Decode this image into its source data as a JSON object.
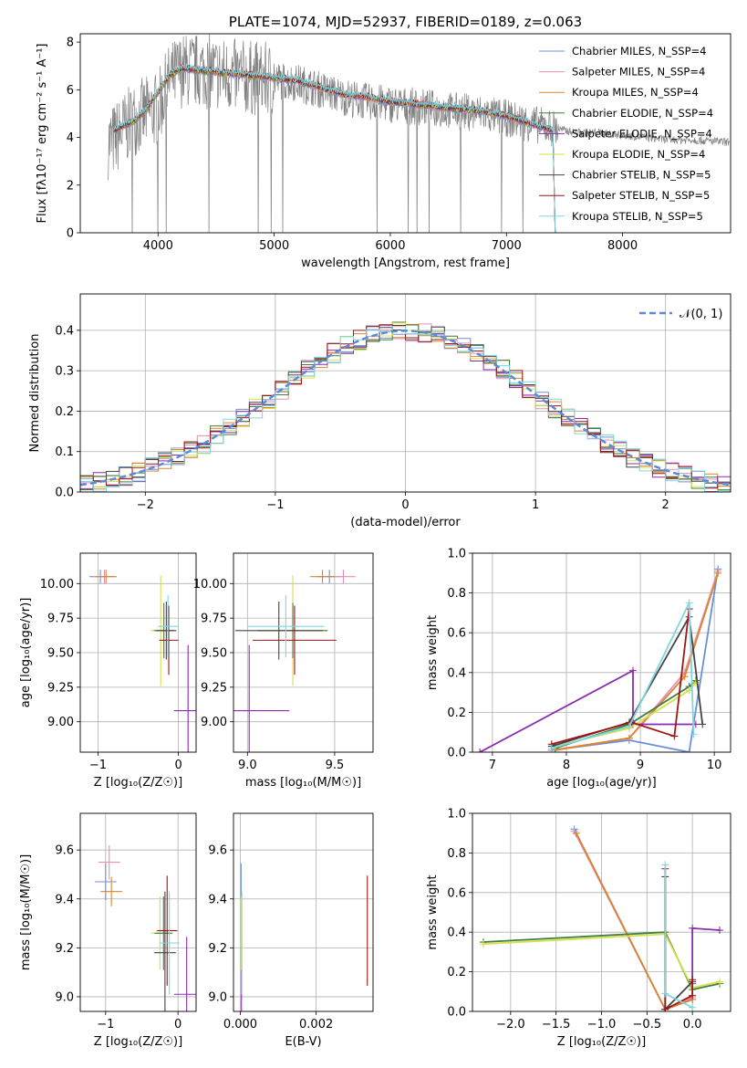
{
  "colors": [
    "#6b8fd6",
    "#e58fb8",
    "#d9862e",
    "#3f7f3f",
    "#8a2bb0",
    "#d6e04a",
    "#444444",
    "#a01515",
    "#7fd6e0"
  ],
  "chart_data": [
    {
      "id": "spectrum",
      "type": "line",
      "title": "PLATE=1074, MJD=52937, FIBERID=0189, z=0.063",
      "xlabel": "wavelength [Angstrom, rest frame]",
      "ylabel": "Flux [fλ10⁻¹⁷ erg cm⁻² s⁻¹ A⁻¹]",
      "xlim": [
        3330,
        8930
      ],
      "ylim": [
        0,
        8.35
      ],
      "xticks": [
        4000,
        5000,
        6000,
        7000,
        8000
      ],
      "yticks": [
        0,
        2,
        4,
        6,
        8
      ],
      "grid": false,
      "legend_position": "top-right",
      "data_flux": {
        "x": [
          3600,
          3800,
          4000,
          4100,
          4200,
          4400,
          4600,
          4800,
          5000,
          5200,
          5400,
          5600,
          5800,
          6000,
          6200,
          6400,
          6600,
          6800,
          7000,
          7200,
          7400,
          7600,
          7800,
          8000,
          8200,
          8400,
          8600,
          8900
        ],
        "y": [
          3.8,
          4.8,
          5.2,
          6.4,
          6.8,
          6.8,
          6.6,
          6.5,
          6.4,
          6.3,
          6.0,
          5.7,
          5.5,
          5.4,
          5.3,
          5.2,
          5.1,
          5.0,
          4.8,
          4.6,
          4.4,
          4.2,
          4.2,
          4.1,
          4.0,
          3.9,
          3.9,
          3.8
        ]
      },
      "model": {
        "x": [
          3620,
          3700,
          3800,
          3900,
          4000,
          4100,
          4200,
          4400,
          4600,
          4800,
          5000,
          5200,
          5400,
          5600,
          5800,
          6000,
          6200,
          6400,
          6600,
          6800,
          7000,
          7200,
          7400
        ],
        "y": [
          4.3,
          4.5,
          4.7,
          5.2,
          5.9,
          6.6,
          6.9,
          6.8,
          6.7,
          6.6,
          6.5,
          6.4,
          6.1,
          5.8,
          5.7,
          5.5,
          5.4,
          5.3,
          5.2,
          5.1,
          4.9,
          4.6,
          4.3
        ]
      },
      "series": [
        {
          "name": "Chabrier MILES, N_SSP=4"
        },
        {
          "name": "Salpeter MILES, N_SSP=4"
        },
        {
          "name": "Kroupa MILES, N_SSP=4"
        },
        {
          "name": "Chabrier ELODIE, N_SSP=4"
        },
        {
          "name": "Salpeter ELODIE, N_SSP=4"
        },
        {
          "name": "Kroupa ELODIE, N_SSP=4"
        },
        {
          "name": "Chabrier STELIB, N_SSP=5"
        },
        {
          "name": "Salpeter STELIB, N_SSP=5"
        },
        {
          "name": "Kroupa STELIB, N_SSP=5"
        }
      ]
    },
    {
      "id": "residuals",
      "type": "line",
      "xlabel": "(data-model)/error",
      "ylabel": "Normed distribution",
      "xlim": [
        -2.5,
        2.5
      ],
      "ylim": [
        0,
        0.49
      ],
      "xticks": [
        -2,
        -1,
        0,
        1,
        2
      ],
      "yticks": [
        0.0,
        0.1,
        0.2,
        0.3,
        0.4
      ],
      "grid": true,
      "legend_position": "top-right",
      "reference": {
        "name": "𝒩(0, 1)",
        "mean": 0,
        "sigma": 1
      },
      "bin_width": 0.1
    },
    {
      "id": "age-Z",
      "type": "scatter",
      "xlabel": "Z [log₁₀(Z/Z☉)]",
      "ylabel": "age  [log₁₀(age/yr)]",
      "xlim": [
        -1.22,
        0.22
      ],
      "ylim": [
        8.78,
        10.22
      ],
      "xticks": [
        -1,
        0
      ],
      "yticks": [
        9.0,
        9.25,
        9.5,
        9.75,
        10.0
      ],
      "grid": true,
      "points": [
        {
          "series": 0,
          "x": -0.97,
          "y": 10.05,
          "ex": 0.27,
          "ey": 0.1
        },
        {
          "series": 1,
          "x": -0.92,
          "y": 10.05,
          "ex": 0.3,
          "ey": 0.1
        },
        {
          "series": 2,
          "x": -0.9,
          "y": 10.05,
          "ex": 0.26,
          "ey": 0.1
        },
        {
          "series": 4,
          "x": 0.12,
          "y": 9.08,
          "ex": 0.35,
          "ey": 0.95
        },
        {
          "series": 5,
          "x": -0.22,
          "y": 9.66,
          "ex": 0.25,
          "ey": 0.8
        },
        {
          "series": 3,
          "x": -0.18,
          "y": 9.66,
          "ex": 0.25,
          "ey": 0.4
        },
        {
          "series": 6,
          "x": -0.15,
          "y": 9.66,
          "ex": 0.25,
          "ey": 0.42
        },
        {
          "series": 7,
          "x": -0.12,
          "y": 9.59,
          "ex": 0.24,
          "ey": 0.5
        },
        {
          "series": 8,
          "x": -0.13,
          "y": 9.69,
          "ex": 0.25,
          "ey": 0.45
        }
      ]
    },
    {
      "id": "age-mass",
      "type": "scatter",
      "xlabel": "mass [log₁₀(M/M☉)]",
      "ylabel": "",
      "xlim": [
        8.92,
        9.72
      ],
      "ylim": [
        8.78,
        10.22
      ],
      "xticks": [
        9.0,
        9.5
      ],
      "yticks": [
        9.0,
        9.25,
        9.5,
        9.75,
        10.0
      ],
      "grid": true,
      "points": [
        {
          "series": 0,
          "x": 9.47,
          "y": 10.05,
          "ex": 0.14,
          "ey": 0.1
        },
        {
          "series": 1,
          "x": 9.55,
          "y": 10.05,
          "ex": 0.14,
          "ey": 0.1
        },
        {
          "series": 2,
          "x": 9.43,
          "y": 10.05,
          "ex": 0.14,
          "ey": 0.1
        },
        {
          "series": 4,
          "x": 9.01,
          "y": 9.08,
          "ex": 0.46,
          "ey": 0.95
        },
        {
          "series": 5,
          "x": 9.26,
          "y": 9.66,
          "ex": 0.4,
          "ey": 0.8
        },
        {
          "series": 3,
          "x": 9.26,
          "y": 9.66,
          "ex": 0.4,
          "ey": 0.4
        },
        {
          "series": 6,
          "x": 9.18,
          "y": 9.66,
          "ex": 0.5,
          "ey": 0.42
        },
        {
          "series": 7,
          "x": 9.27,
          "y": 9.59,
          "ex": 0.48,
          "ey": 0.5
        },
        {
          "series": 8,
          "x": 9.22,
          "y": 9.69,
          "ex": 0.44,
          "ey": 0.45
        }
      ]
    },
    {
      "id": "weight-age",
      "type": "line",
      "xlabel": "age  [log₁₀(age/yr)]",
      "ylabel": "mass weight",
      "xlim": [
        6.73,
        10.22
      ],
      "ylim": [
        0,
        1.0
      ],
      "xticks": [
        7,
        8,
        9,
        10
      ],
      "yticks": [
        0.0,
        0.2,
        0.4,
        0.6,
        0.8,
        1.0
      ],
      "grid": true,
      "lines": [
        {
          "series": 0,
          "x": [
            7.8,
            8.85,
            9.66,
            10.05
          ],
          "y": [
            0.01,
            0.06,
            0.0,
            0.92
          ]
        },
        {
          "series": 1,
          "x": [
            7.8,
            8.85,
            9.6,
            10.05
          ],
          "y": [
            0.01,
            0.07,
            0.4,
            0.91
          ]
        },
        {
          "series": 2,
          "x": [
            7.85,
            8.85,
            9.6,
            10.05
          ],
          "y": [
            0.01,
            0.07,
            0.38,
            0.9
          ]
        },
        {
          "series": 3,
          "x": [
            7.85,
            8.85,
            9.66,
            9.75
          ],
          "y": [
            0.02,
            0.14,
            0.33,
            0.36
          ]
        },
        {
          "series": 4,
          "x": [
            6.83,
            8.9,
            8.9,
            9.75
          ],
          "y": [
            0.0,
            0.41,
            0.14,
            0.14
          ]
        },
        {
          "series": 5,
          "x": [
            7.85,
            8.85,
            9.66,
            9.75
          ],
          "y": [
            0.03,
            0.12,
            0.31,
            0.35
          ]
        },
        {
          "series": 6,
          "x": [
            7.8,
            8.85,
            9.66,
            9.84
          ],
          "y": [
            0.03,
            0.15,
            0.68,
            0.14
          ]
        },
        {
          "series": 7,
          "x": [
            7.8,
            8.88,
            9.46,
            9.66
          ],
          "y": [
            0.04,
            0.15,
            0.08,
            0.72
          ]
        },
        {
          "series": 8,
          "x": [
            7.8,
            8.85,
            9.66,
            9.72
          ],
          "y": [
            0.02,
            0.13,
            0.75,
            0.09
          ]
        }
      ]
    },
    {
      "id": "mass-Z",
      "type": "scatter",
      "xlabel": "Z [log₁₀(Z/Z☉)]",
      "ylabel": "mass [log₁₀(M/M☉)]",
      "xlim": [
        -1.35,
        0.25
      ],
      "ylim": [
        8.94,
        9.75
      ],
      "xticks": [
        -1,
        0
      ],
      "yticks": [
        9.0,
        9.2,
        9.4,
        9.6
      ],
      "grid": true,
      "points": [
        {
          "series": 0,
          "x": -1.0,
          "y": 9.47,
          "ex": 0.3,
          "ey": 0.15
        },
        {
          "series": 1,
          "x": -0.95,
          "y": 9.55,
          "ex": 0.3,
          "ey": 0.14
        },
        {
          "series": 2,
          "x": -0.92,
          "y": 9.43,
          "ex": 0.3,
          "ey": 0.12
        },
        {
          "series": 4,
          "x": 0.12,
          "y": 9.01,
          "ex": 0.35,
          "ey": 0.47
        },
        {
          "series": 5,
          "x": -0.25,
          "y": 9.26,
          "ex": 0.25,
          "ey": 0.3
        },
        {
          "series": 3,
          "x": -0.2,
          "y": 9.26,
          "ex": 0.25,
          "ey": 0.3
        },
        {
          "series": 6,
          "x": -0.18,
          "y": 9.18,
          "ex": 0.3,
          "ey": 0.5
        },
        {
          "series": 7,
          "x": -0.15,
          "y": 9.27,
          "ex": 0.28,
          "ey": 0.45
        },
        {
          "series": 8,
          "x": -0.12,
          "y": 9.22,
          "ex": 0.28,
          "ey": 0.42
        }
      ]
    },
    {
      "id": "mass-EBV",
      "type": "scatter",
      "xlabel": "E(B-V)",
      "ylabel": "",
      "xlim": [
        -0.00018,
        0.0035
      ],
      "ylim": [
        8.94,
        9.75
      ],
      "xticks": [
        0.0,
        0.002
      ],
      "xtick_labels": [
        "0.000",
        "0.002"
      ],
      "yticks": [
        9.0,
        9.2,
        9.4,
        9.6
      ],
      "grid": true,
      "points": [
        {
          "series": 0,
          "x": 2e-05,
          "y": 9.47,
          "ey": 0.15
        },
        {
          "series": 4,
          "x": 3e-05,
          "y": 9.01,
          "ey": 0.47
        },
        {
          "series": 5,
          "x": 2e-05,
          "y": 9.26,
          "ey": 0.3
        },
        {
          "series": 8,
          "x": 4e-05,
          "y": 9.22,
          "ey": 0.42
        },
        {
          "series": 7,
          "x": 0.00335,
          "y": 9.27,
          "ey": 0.45
        }
      ]
    },
    {
      "id": "weight-Z",
      "type": "line",
      "xlabel": "Z [log₁₀(Z/Z☉)]",
      "ylabel": "mass weight",
      "xlim": [
        -2.42,
        0.42
      ],
      "ylim": [
        0,
        1.0
      ],
      "xticks": [
        -2.0,
        -1.5,
        -1.0,
        -0.5,
        0.0
      ],
      "yticks": [
        0.0,
        0.2,
        0.4,
        0.6,
        0.8,
        1.0
      ],
      "grid": true,
      "lines": [
        {
          "series": 0,
          "x": [
            -1.3,
            -0.3,
            0.0
          ],
          "y": [
            0.92,
            0.01,
            0.06
          ]
        },
        {
          "series": 1,
          "x": [
            -1.3,
            -0.3,
            0.0
          ],
          "y": [
            0.91,
            0.01,
            0.07
          ]
        },
        {
          "series": 2,
          "x": [
            -1.28,
            -0.3,
            0.0
          ],
          "y": [
            0.9,
            0.01,
            0.06
          ]
        },
        {
          "series": 3,
          "x": [
            -2.3,
            -0.3,
            0.0,
            0.3
          ],
          "y": [
            0.35,
            0.4,
            0.11,
            0.14
          ]
        },
        {
          "series": 4,
          "x": [
            0.0,
            0.0,
            0.3
          ],
          "y": [
            0.14,
            0.42,
            0.41
          ]
        },
        {
          "series": 5,
          "x": [
            -2.3,
            -0.3,
            0.0,
            0.3
          ],
          "y": [
            0.34,
            0.39,
            0.12,
            0.15
          ]
        },
        {
          "series": 6,
          "x": [
            -0.3,
            -0.3,
            0.0
          ],
          "y": [
            0.68,
            0.01,
            0.15
          ]
        },
        {
          "series": 7,
          "x": [
            -0.3,
            -0.3,
            0.0,
            0.0
          ],
          "y": [
            0.72,
            0.01,
            0.08,
            0.16
          ]
        },
        {
          "series": 8,
          "x": [
            -0.3,
            -0.3,
            0.0
          ],
          "y": [
            0.74,
            0.09,
            0.02
          ]
        }
      ]
    }
  ]
}
